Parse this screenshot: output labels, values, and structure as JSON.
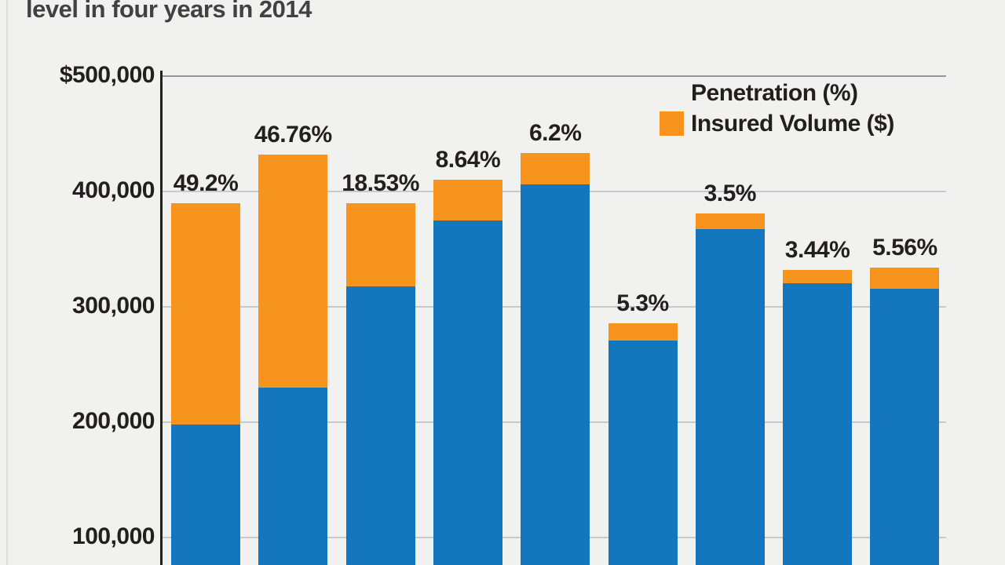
{
  "page": {
    "title": "level in four years in 2014"
  },
  "legend": {
    "items": [
      {
        "label": "Penetration (%)"
      },
      {
        "label": "Insured Volume ($)",
        "swatch_color": "#f7941e"
      }
    ]
  },
  "chart_data": {
    "type": "bar",
    "stacked": true,
    "title": "level in four years in 2014",
    "legend": [
      "Penetration (%)",
      "Insured Volume ($)"
    ],
    "legend_position": "top-right",
    "grid": true,
    "y_axis": {
      "max": 500000,
      "tick_step": 100000,
      "visible_min": 100000,
      "tick_labels": [
        "$500,000",
        "400,000",
        "300,000",
        "200,000",
        "100,000"
      ],
      "tick_values": [
        500000,
        400000,
        300000,
        200000,
        100000
      ]
    },
    "colors": {
      "base_segment": "#1476bd",
      "volume_segment": "#f7941e",
      "gridline_top": "#939598",
      "gridline": "#c8c9cb",
      "axis": "#231f20"
    },
    "bars": [
      {
        "label": "49.2%",
        "penetration_pct": 49.2,
        "total_usd": 390000
      },
      {
        "label": "46.76%",
        "penetration_pct": 46.76,
        "total_usd": 432000
      },
      {
        "label": "18.53%",
        "penetration_pct": 18.53,
        "total_usd": 390000
      },
      {
        "label": "8.64%",
        "penetration_pct": 8.64,
        "total_usd": 410000
      },
      {
        "label": "6.2%",
        "penetration_pct": 6.2,
        "total_usd": 433000
      },
      {
        "label": "5.3%",
        "penetration_pct": 5.3,
        "total_usd": 286000
      },
      {
        "label": "3.5%",
        "penetration_pct": 3.5,
        "total_usd": 381000
      },
      {
        "label": "3.44%",
        "penetration_pct": 3.44,
        "total_usd": 332000
      },
      {
        "label": "5.56%",
        "penetration_pct": 5.56,
        "total_usd": 334000
      }
    ]
  }
}
